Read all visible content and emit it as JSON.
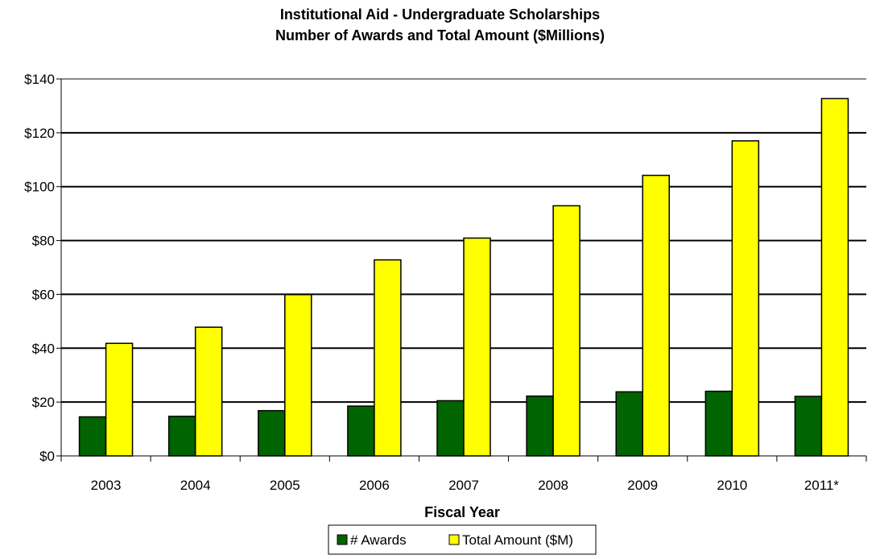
{
  "chart_data": {
    "type": "bar",
    "title_lines": [
      "Institutional Aid - Undergraduate Scholarships",
      "Number of Awards and Total Amount ($Millions)"
    ],
    "xlabel": "Fiscal Year",
    "ylabel": "",
    "categories": [
      "2003",
      "2004",
      "2005",
      "2006",
      "2007",
      "2008",
      "2009",
      "2010",
      "2011*"
    ],
    "ylim": [
      0,
      140
    ],
    "y_ticks": [
      0,
      20,
      40,
      60,
      80,
      100,
      120,
      140
    ],
    "y_tick_labels": [
      "$0",
      "$20",
      "$40",
      "$60",
      "$80",
      "$100",
      "$120",
      "$140"
    ],
    "grid": true,
    "legend_position": "bottom",
    "series": [
      {
        "name": "# Awards",
        "color": "#006400",
        "values": [
          14.5,
          14.7,
          16.8,
          18.5,
          20.5,
          22.2,
          23.8,
          24.0,
          22.1
        ]
      },
      {
        "name": "Total Amount ($M)",
        "color": "#ffff00",
        "values": [
          41.8,
          47.8,
          59.9,
          72.8,
          80.9,
          92.9,
          104.2,
          117.0,
          132.7
        ]
      }
    ]
  }
}
